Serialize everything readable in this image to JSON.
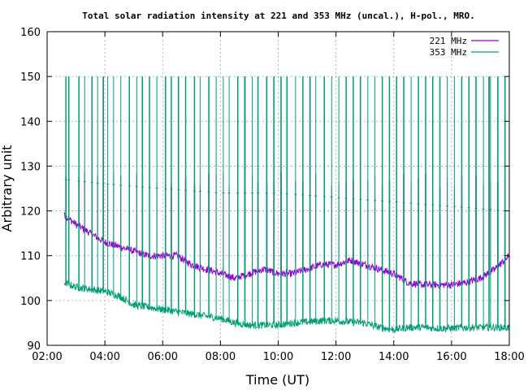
{
  "chart_data": {
    "type": "line",
    "title": "Total solar radiation intensity at 221 and 353 MHz (uncal.), H-pol., MRO.",
    "xlabel": "Time (UT)",
    "ylabel": "Arbitrary unit",
    "xlim_hours": [
      2,
      18
    ],
    "ylim": [
      90,
      160
    ],
    "x_ticks": [
      "02:00",
      "04:00",
      "06:00",
      "08:00",
      "10:00",
      "12:00",
      "14:00",
      "16:00",
      "18:00"
    ],
    "y_ticks": [
      "90",
      "100",
      "110",
      "120",
      "130",
      "140",
      "150",
      "160"
    ],
    "grid": true,
    "legend_position": "top-right",
    "series": [
      {
        "name": "221 MHz",
        "color": "#9400d3",
        "start_hour": 2.6,
        "end_hour": 18.0,
        "baseline_x": [
          2.6,
          3.0,
          3.5,
          4.0,
          4.5,
          5.0,
          5.5,
          6.0,
          6.5,
          7.0,
          7.5,
          8.0,
          8.5,
          9.0,
          9.5,
          10.0,
          10.5,
          11.0,
          11.5,
          12.0,
          12.5,
          13.0,
          13.5,
          14.0,
          14.5,
          15.0,
          15.5,
          16.0,
          16.5,
          17.0,
          17.5,
          18.0
        ],
        "baseline_y": [
          119,
          117,
          115,
          113,
          112,
          111,
          110,
          110,
          110,
          108,
          107,
          106,
          105,
          106,
          107,
          106,
          106,
          107,
          108,
          108,
          109,
          108,
          107,
          106,
          104,
          103.5,
          103.5,
          103.5,
          104,
          105,
          107,
          110
        ],
        "spike_top": 150,
        "spike_low_y": 127,
        "spike_low_hours": [
          2.65,
          2.75,
          3.1,
          3.3,
          3.55,
          3.75,
          4.1,
          4.3,
          4.55,
          5.1,
          5.3,
          5.8,
          6.1,
          6.3,
          6.8,
          7.1,
          7.3,
          7.6,
          7.85,
          8.1,
          8.3,
          8.6,
          9.1,
          9.3,
          9.6,
          9.85,
          10.1,
          10.3,
          10.6,
          10.85,
          11.3,
          11.6,
          11.85,
          12.1,
          12.35,
          12.6,
          12.85,
          13.1,
          13.35,
          13.6,
          13.85,
          14.1,
          14.35,
          14.6,
          14.85,
          15.1,
          15.35,
          15.6,
          15.85,
          16.1,
          16.35,
          16.6,
          16.85,
          17.1,
          17.35,
          17.6,
          17.85
        ],
        "spike_full_hours": [
          3.95,
          4.85,
          8.85,
          11.1,
          17.3
        ]
      },
      {
        "name": "353 MHz",
        "color": "#009e73",
        "start_hour": 2.6,
        "end_hour": 18.0,
        "baseline_x": [
          2.6,
          3.0,
          3.5,
          4.0,
          4.5,
          5.0,
          5.5,
          6.0,
          6.5,
          7.0,
          7.5,
          8.0,
          8.5,
          9.0,
          9.5,
          10.0,
          10.5,
          11.0,
          11.5,
          12.0,
          12.5,
          13.0,
          13.5,
          14.0,
          14.5,
          15.0,
          15.5,
          16.0,
          16.5,
          17.0,
          17.5,
          18.0
        ],
        "baseline_y": [
          104,
          103,
          102.5,
          102,
          101,
          99,
          98.5,
          98,
          97.5,
          97,
          96.5,
          96,
          95,
          94.5,
          94.5,
          94.5,
          95,
          95.2,
          95.5,
          95.5,
          95.2,
          95,
          94,
          93.5,
          94,
          94,
          93.8,
          93.8,
          94,
          94,
          94,
          94
        ],
        "plateau_x": [
          2.6,
          4.0,
          6.0,
          8.0,
          10.0,
          12.0,
          14.0,
          16.0,
          18.0
        ],
        "plateau_y": [
          127,
          126,
          125,
          124,
          124,
          123,
          122,
          121,
          120
        ],
        "spike_top": 150,
        "spike_hours": [
          2.65,
          2.75,
          3.1,
          3.3,
          3.55,
          3.75,
          3.95,
          4.1,
          4.3,
          4.55,
          4.85,
          5.1,
          5.3,
          5.55,
          5.8,
          6.1,
          6.3,
          6.55,
          6.8,
          7.1,
          7.3,
          7.6,
          7.85,
          8.1,
          8.3,
          8.6,
          8.85,
          9.1,
          9.3,
          9.6,
          9.85,
          10.1,
          10.3,
          10.6,
          10.85,
          11.1,
          11.3,
          11.6,
          11.85,
          12.1,
          12.35,
          12.6,
          12.85,
          13.1,
          13.35,
          13.6,
          13.85,
          14.1,
          14.35,
          14.6,
          14.85,
          15.1,
          15.35,
          15.6,
          15.85,
          16.1,
          16.35,
          16.6,
          16.85,
          17.1,
          17.3,
          17.35,
          17.6,
          17.85
        ]
      }
    ]
  }
}
